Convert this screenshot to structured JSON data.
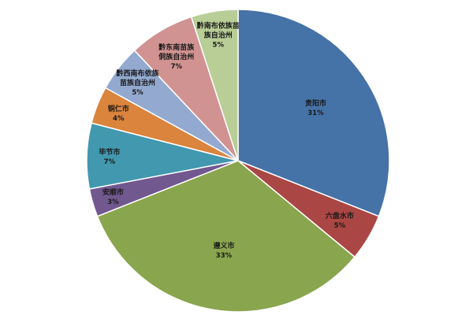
{
  "chart_data": {
    "type": "pie",
    "title": "",
    "slices": [
      {
        "name": "贵阳市",
        "lines": [
          "贵阳市"
        ],
        "value": 31,
        "value_label": "31%",
        "color": "#4572A7"
      },
      {
        "name": "六盘水市",
        "lines": [
          "六盘水市"
        ],
        "value": 5,
        "value_label": "5%",
        "color": "#AA4643"
      },
      {
        "name": "遵义市",
        "lines": [
          "遵义市"
        ],
        "value": 33,
        "value_label": "33%",
        "color": "#89A54E"
      },
      {
        "name": "安顺市",
        "lines": [
          "安顺市"
        ],
        "value": 3,
        "value_label": "3%",
        "color": "#71588F"
      },
      {
        "name": "毕节市",
        "lines": [
          "毕节市"
        ],
        "value": 7,
        "value_label": "7%",
        "color": "#4198AF"
      },
      {
        "name": "铜仁市",
        "lines": [
          "铜仁市"
        ],
        "value": 4,
        "value_label": "4%",
        "color": "#DB843D"
      },
      {
        "name": "黔西南布依族苗族自治州",
        "lines": [
          "黔西南布依族",
          "苗族自治州"
        ],
        "value": 5,
        "value_label": "5%",
        "color": "#93A9CF"
      },
      {
        "name": "黔东南苗族侗族自治州",
        "lines": [
          "黔东南苗族",
          "侗族自治州"
        ],
        "value": 7,
        "value_label": "7%",
        "color": "#D19392"
      },
      {
        "name": "黔南布依族苗族自治州",
        "lines": [
          "黔南布依族苗",
          "族自治州"
        ],
        "value": 5,
        "value_label": "5%",
        "color": "#B9CD96"
      }
    ],
    "start_angle_deg": 0,
    "direction": "clockwise",
    "legend": "none",
    "labels_inside": true
  }
}
